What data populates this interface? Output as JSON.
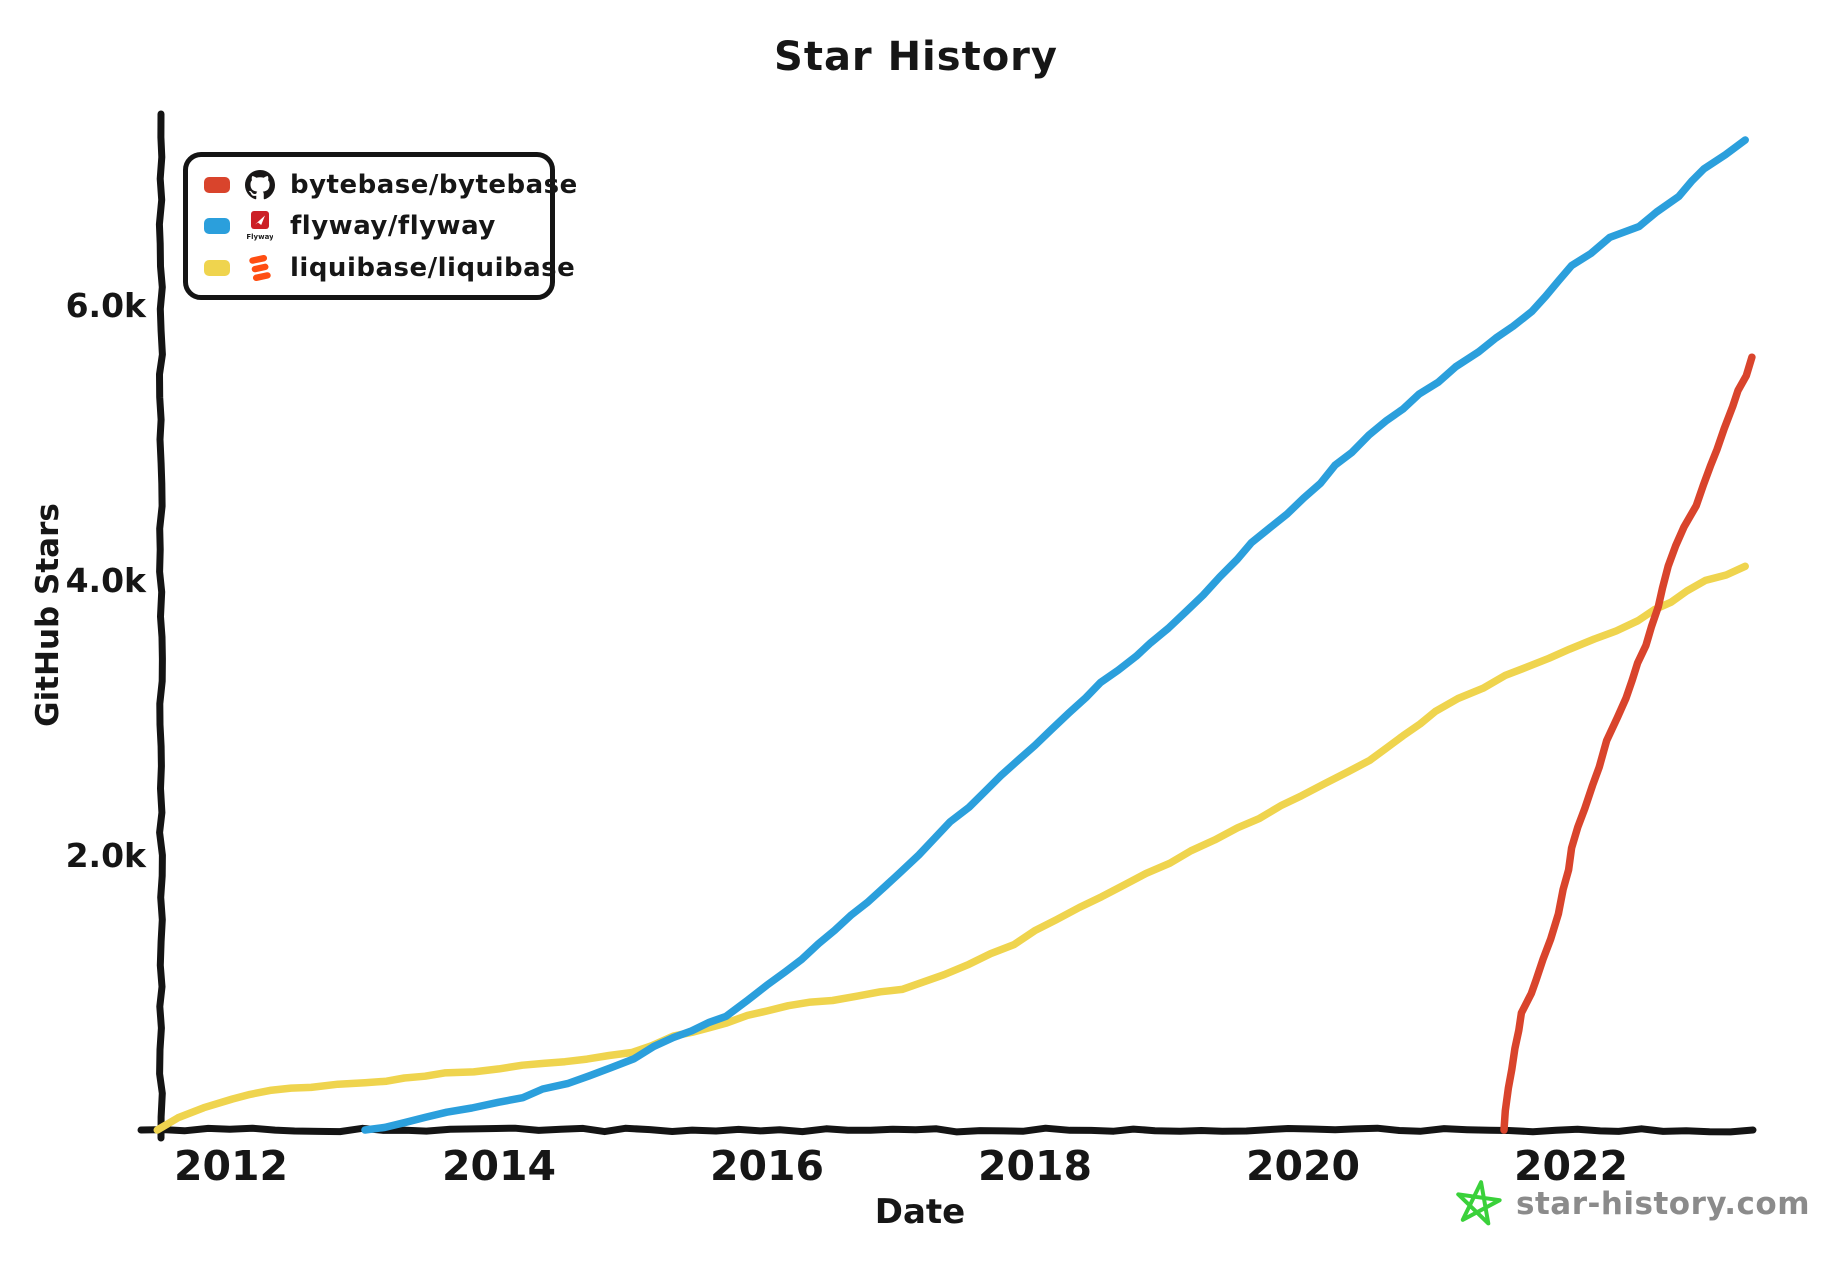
{
  "footer": {
    "text": "star-history.com",
    "star_color": "#3ad13a",
    "text_color": "#8b8b8b"
  },
  "chart_data": {
    "type": "line",
    "title": "Star History",
    "xlabel": "Date",
    "ylabel": "GitHub Stars",
    "x_ticks": [
      "2012",
      "2014",
      "2016",
      "2018",
      "2020",
      "2022"
    ],
    "y_ticks": [
      "2.0k",
      "4.0k",
      "6.0k"
    ],
    "xlim": [
      2011.3,
      2023.45
    ],
    "ylim": [
      0,
      7400
    ],
    "grid": false,
    "legend_position": "top-left",
    "style": "hand-drawn-xkcd",
    "axis_color": "#141414",
    "series": [
      {
        "name": "bytebase/bytebase",
        "color": "#d9442c",
        "icon": "github-octocat",
        "points": [
          [
            2021.5,
            0
          ],
          [
            2021.54,
            300
          ],
          [
            2021.58,
            600
          ],
          [
            2021.63,
            850
          ],
          [
            2021.7,
            1000
          ],
          [
            2021.75,
            1100
          ],
          [
            2021.85,
            1400
          ],
          [
            2021.95,
            1750
          ],
          [
            2022.0,
            2050
          ],
          [
            2022.1,
            2350
          ],
          [
            2022.2,
            2650
          ],
          [
            2022.35,
            3000
          ],
          [
            2022.5,
            3400
          ],
          [
            2022.6,
            3660
          ],
          [
            2022.72,
            4090
          ],
          [
            2022.85,
            4390
          ],
          [
            2023.0,
            4700
          ],
          [
            2023.1,
            4950
          ],
          [
            2023.2,
            5260
          ],
          [
            2023.3,
            5480
          ],
          [
            2023.35,
            5620
          ]
        ]
      },
      {
        "name": "flyway/flyway",
        "color": "#2b9fdc",
        "icon": "flyway-logo",
        "points": [
          [
            2013.0,
            0
          ],
          [
            2013.3,
            60
          ],
          [
            2013.6,
            120
          ],
          [
            2014.0,
            200
          ],
          [
            2014.5,
            330
          ],
          [
            2015.0,
            520
          ],
          [
            2015.3,
            680
          ],
          [
            2015.7,
            830
          ],
          [
            2016.0,
            1050
          ],
          [
            2016.5,
            1450
          ],
          [
            2017.0,
            1880
          ],
          [
            2017.5,
            2350
          ],
          [
            2018.0,
            2800
          ],
          [
            2018.5,
            3250
          ],
          [
            2019.0,
            3650
          ],
          [
            2019.5,
            4150
          ],
          [
            2020.0,
            4600
          ],
          [
            2020.5,
            5050
          ],
          [
            2021.0,
            5450
          ],
          [
            2021.3,
            5670
          ],
          [
            2021.7,
            5950
          ],
          [
            2022.0,
            6280
          ],
          [
            2022.3,
            6480
          ],
          [
            2022.5,
            6570
          ],
          [
            2022.8,
            6800
          ],
          [
            2023.0,
            7000
          ],
          [
            2023.3,
            7200
          ]
        ]
      },
      {
        "name": "liquibase/liquibase",
        "color": "#efd44e",
        "icon": "liquibase-logo",
        "points": [
          [
            2011.45,
            0
          ],
          [
            2011.6,
            90
          ],
          [
            2011.8,
            170
          ],
          [
            2012.0,
            230
          ],
          [
            2012.3,
            290
          ],
          [
            2012.6,
            310
          ],
          [
            2013.0,
            340
          ],
          [
            2013.3,
            375
          ],
          [
            2013.6,
            410
          ],
          [
            2014.0,
            450
          ],
          [
            2014.5,
            500
          ],
          [
            2015.0,
            560
          ],
          [
            2015.3,
            680
          ],
          [
            2015.7,
            780
          ],
          [
            2016.0,
            870
          ],
          [
            2016.5,
            950
          ],
          [
            2017.0,
            1020
          ],
          [
            2017.5,
            1200
          ],
          [
            2018.0,
            1440
          ],
          [
            2018.5,
            1700
          ],
          [
            2019.0,
            1950
          ],
          [
            2019.5,
            2200
          ],
          [
            2020.0,
            2430
          ],
          [
            2020.5,
            2700
          ],
          [
            2021.0,
            3040
          ],
          [
            2021.5,
            3300
          ],
          [
            2022.0,
            3500
          ],
          [
            2022.5,
            3700
          ],
          [
            2023.0,
            3990
          ],
          [
            2023.3,
            4100
          ]
        ]
      }
    ]
  }
}
